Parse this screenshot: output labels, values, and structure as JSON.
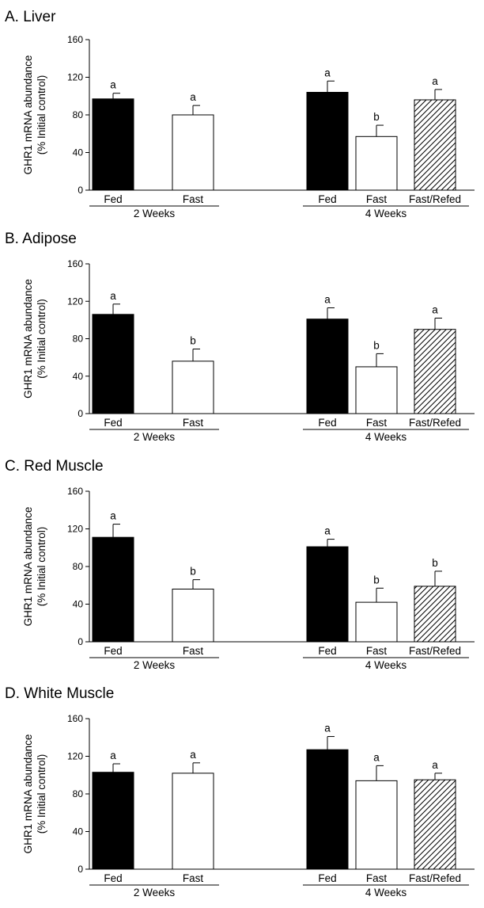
{
  "chart_data": [
    {
      "type": "bar",
      "title": "A. Liver",
      "ylabel": [
        "GHR1 mRNA abundance",
        "(% Initial control)"
      ],
      "ylim": [
        0,
        160
      ],
      "yticks": [
        0,
        40,
        80,
        120,
        160
      ],
      "groups": [
        {
          "label": "2 Weeks",
          "bars": [
            {
              "category": "Fed",
              "value": 97,
              "error": 6,
              "letter": "a",
              "fill": "black"
            },
            {
              "category": "Fast",
              "value": 80,
              "error": 10,
              "letter": "a",
              "fill": "white"
            }
          ]
        },
        {
          "label": "4 Weeks",
          "bars": [
            {
              "category": "Fed",
              "value": 104,
              "error": 12,
              "letter": "a",
              "fill": "black"
            },
            {
              "category": "Fast",
              "value": 57,
              "error": 12,
              "letter": "b",
              "fill": "white"
            },
            {
              "category": "Fast/Refed",
              "value": 96,
              "error": 11,
              "letter": "a",
              "fill": "hatched"
            }
          ]
        }
      ]
    },
    {
      "type": "bar",
      "title": "B. Adipose",
      "ylabel": [
        "GHR1 mRNA abundance",
        "(% Initial control)"
      ],
      "ylim": [
        0,
        160
      ],
      "yticks": [
        0,
        40,
        80,
        120,
        160
      ],
      "groups": [
        {
          "label": "2 Weeks",
          "bars": [
            {
              "category": "Fed",
              "value": 106,
              "error": 11,
              "letter": "a",
              "fill": "black"
            },
            {
              "category": "Fast",
              "value": 56,
              "error": 13,
              "letter": "b",
              "fill": "white"
            }
          ]
        },
        {
          "label": "4 Weeks",
          "bars": [
            {
              "category": "Fed",
              "value": 101,
              "error": 12,
              "letter": "a",
              "fill": "black"
            },
            {
              "category": "Fast",
              "value": 50,
              "error": 14,
              "letter": "b",
              "fill": "white"
            },
            {
              "category": "Fast/Refed",
              "value": 90,
              "error": 12,
              "letter": "a",
              "fill": "hatched"
            }
          ]
        }
      ]
    },
    {
      "type": "bar",
      "title": "C. Red Muscle",
      "ylabel": [
        "GHR1 mRNA abundance",
        "(% Initial control)"
      ],
      "ylim": [
        0,
        160
      ],
      "yticks": [
        0,
        40,
        80,
        120,
        160
      ],
      "groups": [
        {
          "label": "2 Weeks",
          "bars": [
            {
              "category": "Fed",
              "value": 111,
              "error": 14,
              "letter": "a",
              "fill": "black"
            },
            {
              "category": "Fast",
              "value": 56,
              "error": 10,
              "letter": "b",
              "fill": "white"
            }
          ]
        },
        {
          "label": "4 Weeks",
          "bars": [
            {
              "category": "Fed",
              "value": 101,
              "error": 8,
              "letter": "a",
              "fill": "black"
            },
            {
              "category": "Fast",
              "value": 42,
              "error": 15,
              "letter": "b",
              "fill": "white"
            },
            {
              "category": "Fast/Refed",
              "value": 59,
              "error": 16,
              "letter": "b",
              "fill": "hatched"
            }
          ]
        }
      ]
    },
    {
      "type": "bar",
      "title": "D. White Muscle",
      "ylabel": [
        "GHR1 mRNA abundance",
        "(% Initial control)"
      ],
      "ylim": [
        0,
        160
      ],
      "yticks": [
        0,
        40,
        80,
        120,
        160
      ],
      "groups": [
        {
          "label": "2 Weeks",
          "bars": [
            {
              "category": "Fed",
              "value": 103,
              "error": 9,
              "letter": "a",
              "fill": "black"
            },
            {
              "category": "Fast",
              "value": 102,
              "error": 11,
              "letter": "a",
              "fill": "white"
            }
          ]
        },
        {
          "label": "4 Weeks",
          "bars": [
            {
              "category": "Fed",
              "value": 127,
              "error": 14,
              "letter": "a",
              "fill": "black"
            },
            {
              "category": "Fast",
              "value": 94,
              "error": 16,
              "letter": "a",
              "fill": "white"
            },
            {
              "category": "Fast/Refed",
              "value": 95,
              "error": 7,
              "letter": "a",
              "fill": "hatched"
            }
          ]
        }
      ]
    }
  ]
}
